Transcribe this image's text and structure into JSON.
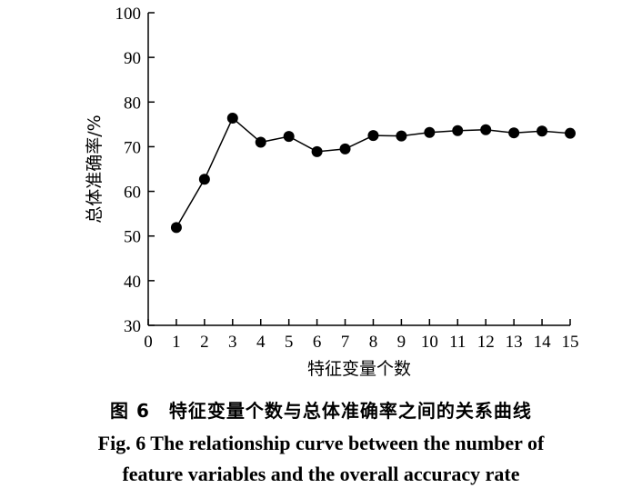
{
  "chart_data": {
    "type": "line",
    "xlabel": "特征变量个数",
    "ylabel": "总体准确率/%",
    "xlim": [
      0,
      15
    ],
    "ylim": [
      30,
      100
    ],
    "x_ticks": [
      0,
      1,
      2,
      3,
      4,
      5,
      6,
      7,
      8,
      9,
      10,
      11,
      12,
      13,
      14,
      15
    ],
    "y_ticks": [
      30,
      40,
      50,
      60,
      70,
      80,
      90,
      100
    ],
    "grid": false,
    "series": [
      {
        "x": [
          1,
          2,
          3,
          4,
          5,
          6,
          7,
          8,
          9,
          10,
          11,
          12,
          13,
          14,
          15
        ],
        "y": [
          51.9,
          62.7,
          76.4,
          71.0,
          72.3,
          68.9,
          69.5,
          72.5,
          72.4,
          73.2,
          73.6,
          73.8,
          73.1,
          73.5,
          73.0
        ],
        "color": "#000000",
        "marker": "filled-circle"
      }
    ]
  },
  "caption": {
    "cn": "图 6　特征变量个数与总体准确率之间的关系曲线",
    "en_line1": "Fig. 6    The relationship curve between the number of",
    "en_line2": "feature variables and the overall accuracy rate"
  }
}
